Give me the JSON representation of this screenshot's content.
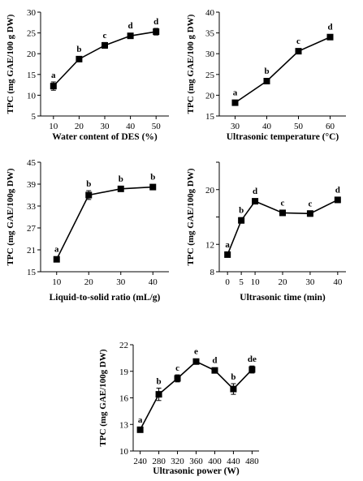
{
  "chart_data": [
    {
      "type": "line",
      "xlabel": "Water content of DES (%)",
      "ylabel": "TPC (mg GAE/100 g DW)",
      "x": [
        10,
        20,
        30,
        40,
        50
      ],
      "y": [
        12.2,
        18.7,
        22.0,
        24.3,
        25.3
      ],
      "err": [
        1.0,
        0.4,
        0.7,
        0.3,
        0.8
      ],
      "labels": [
        "a",
        "b",
        "c",
        "d",
        "d"
      ],
      "xticks": [
        10,
        20,
        30,
        40,
        50
      ],
      "yticks": [
        5,
        10,
        15,
        20,
        25,
        30
      ],
      "xlim": [
        5,
        55
      ],
      "ylim": [
        5,
        30
      ]
    },
    {
      "type": "line",
      "xlabel": "Ultrasonic temperature (°C)",
      "ylabel": "TPC (mg GAE/100 g DW)",
      "x": [
        30,
        40,
        50,
        60
      ],
      "y": [
        18.2,
        23.4,
        30.6,
        34.0
      ],
      "err": [
        0.3,
        0.6,
        0.4,
        0.6
      ],
      "labels": [
        "a",
        "b",
        "c",
        "d"
      ],
      "xticks": [
        30,
        40,
        50,
        60
      ],
      "yticks": [
        15,
        20,
        25,
        30,
        35,
        40
      ],
      "xlim": [
        25,
        65
      ],
      "ylim": [
        15,
        40
      ]
    },
    {
      "type": "line",
      "xlabel": "Liquid-to-solid ratio (mL/g)",
      "ylabel": "TPC (mg GAE/100g DW)",
      "x": [
        10,
        20,
        30,
        40
      ],
      "y": [
        18.4,
        36.0,
        37.7,
        38.2
      ],
      "err": [
        0.3,
        1.2,
        0.5,
        0.5
      ],
      "labels": [
        "a",
        "b",
        "b",
        "b"
      ],
      "xticks": [
        10,
        20,
        30,
        40
      ],
      "yticks": [
        15,
        21,
        27,
        33,
        39,
        45
      ],
      "ytick_labels": [
        "15",
        "21",
        "27",
        "33",
        "39",
        "45"
      ],
      "xlim": [
        5,
        45
      ],
      "ylim": [
        15,
        45
      ]
    },
    {
      "type": "line",
      "xlabel": "Ultrasonic time (min)",
      "ylabel": "TPC (mg GAE/100g DW)",
      "x": [
        0,
        5,
        10,
        20,
        30,
        40
      ],
      "y": [
        10.5,
        15.5,
        18.3,
        16.6,
        16.5,
        18.5
      ],
      "err": [
        0.3,
        0.4,
        0.3,
        0.3,
        0.4,
        0.4
      ],
      "labels": [
        "a",
        "b",
        "d",
        "c",
        "c",
        "d"
      ],
      "xticks": [
        0,
        5,
        10,
        20,
        30,
        40
      ],
      "yticks": [
        8,
        12,
        16,
        20,
        24
      ],
      "ytick_labels": [
        "8",
        "12",
        "",
        "20",
        ""
      ],
      "xlim": [
        -3,
        43
      ],
      "ylim": [
        8,
        24
      ]
    },
    {
      "type": "line",
      "xlabel": "Ultrasonic power (W)",
      "ylabel": "TPC (mg GAE/100g DW)",
      "x": [
        240,
        280,
        320,
        360,
        400,
        440,
        480
      ],
      "y": [
        12.4,
        16.4,
        18.2,
        20.1,
        19.1,
        17.0,
        19.2
      ],
      "err": [
        0.2,
        0.7,
        0.4,
        0.2,
        0.2,
        0.6,
        0.4
      ],
      "labels": [
        "a",
        "b",
        "c",
        "e",
        "d",
        "b",
        "de"
      ],
      "xticks": [
        240,
        280,
        320,
        360,
        400,
        440,
        480
      ],
      "yticks": [
        10,
        13,
        16,
        19,
        22
      ],
      "ytick_labels": [
        "10",
        "13",
        "16",
        "19",
        "22"
      ],
      "xlim": [
        225,
        495
      ],
      "ylim": [
        10,
        22
      ]
    }
  ]
}
